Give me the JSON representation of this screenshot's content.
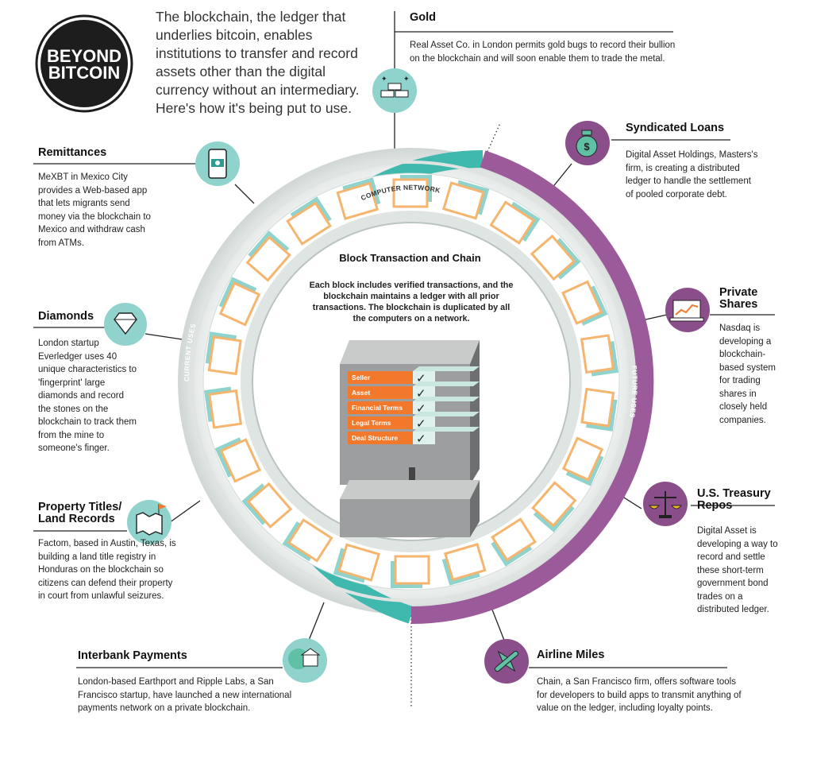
{
  "logo": {
    "line1": "BEYOND",
    "line2": "BITCOIN"
  },
  "intro": "The blockchain, the ledger that underlies bitcoin, enables institutions to transfer and record assets other than the digital currency without an intermediary. Here's how it's being put to use.",
  "center": {
    "title": "Block Transaction and Chain",
    "body": "Each block includes verified transactions, and the blockchain maintains a ledger with all prior transactions. The blockchain is duplicated by all the computers on a network.",
    "layers": [
      "Seller",
      "Asset",
      "Financial Terms",
      "Legal Terms",
      "Deal Structure"
    ]
  },
  "labels": {
    "network": "COMPUTER NETWORK",
    "current": "CURRENT USES",
    "future": "FUTURE USES"
  },
  "current_uses": [
    {
      "title": "Remittances",
      "body": "MeXBT in Mexico City provides a Web-based app that lets migrants send money via the blockchain to Mexico and withdraw cash from ATMs.",
      "icon": "phone-money-icon"
    },
    {
      "title": "Diamonds",
      "body": "London startup Everledger uses 40 unique characteristics to 'fingerprint' large diamonds and record the stones on the blockchain to track them from the mine to someone's finger.",
      "icon": "diamond-icon"
    },
    {
      "title": "Property Titles/ Land Records",
      "body": "Factom, based in Austin, Texas, is building a land title registry in Honduras on the blockchain so citizens can defend their property in court from unlawful seizures.",
      "icon": "map-icon"
    },
    {
      "title": "Interbank Payments",
      "body": "London-based Earthport and Ripple Labs, a San Francisco startup, have launched a new international payments network on a private blockchain.",
      "icon": "bank-globe-icon"
    },
    {
      "title": "Gold",
      "body": "Real Asset Co. in London permits gold bugs to record their bullion on the blockchain and will soon enable them to trade the metal.",
      "icon": "gold-bars-icon"
    }
  ],
  "future_uses": [
    {
      "title": "Syndicated Loans",
      "body": "Digital Asset Holdings, Masters's firm, is creating a distributed ledger to handle the settlement of pooled corporate debt.",
      "icon": "money-bag-icon"
    },
    {
      "title": "Private Shares",
      "body": "Nasdaq is developing a blockchain-based system for trading shares in closely held companies.",
      "icon": "chart-laptop-icon"
    },
    {
      "title": "U.S. Treasury Repos",
      "body": "Digital Asset is developing a way to record and settle these short-term government bond trades on a distributed ledger.",
      "icon": "scales-icon"
    },
    {
      "title": "Airline Miles",
      "body": "Chain, a San Francisco firm, offers software tools for developers to build apps to transmit anything of value on the ledger, including loyalty points.",
      "icon": "airplane-icon"
    }
  ],
  "colors": {
    "teal": "#3fb8ae",
    "purple": "#9b5a9a",
    "orange": "#f2792b",
    "icon_teal": "#8fd3cc",
    "icon_purple": "#8a4f8a"
  }
}
